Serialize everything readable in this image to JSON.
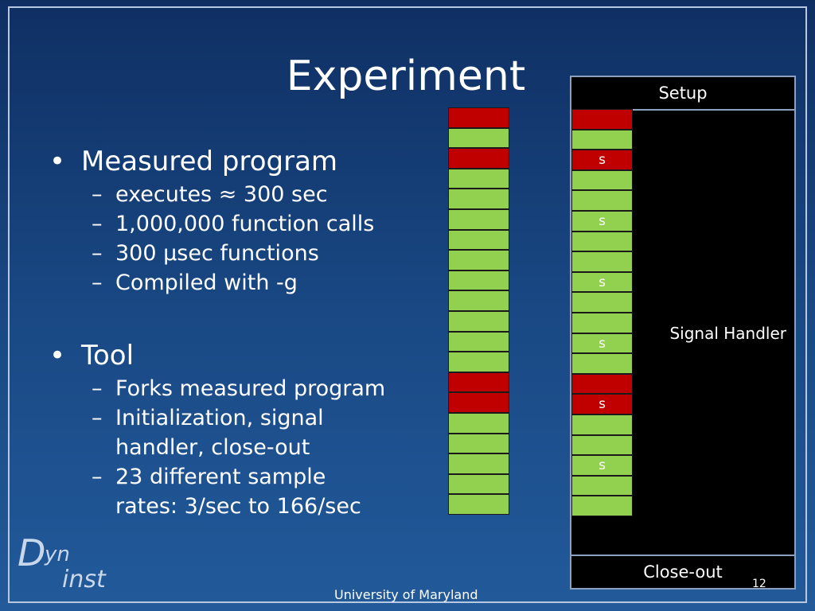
{
  "slide": {
    "title": "Experiment",
    "bullets": [
      {
        "text": "Measured program",
        "subs": [
          "executes  ≈ 300 sec",
          "1,000,000 function calls",
          "300 µsec functions",
          "Compiled with -g"
        ]
      },
      {
        "text": "Tool",
        "subs": [
          "Forks measured program",
          "Initialization, signal\nhandler, close-out",
          "23 different  sample\nrates:  3/sec to 166/sec"
        ]
      }
    ]
  },
  "program_column": [
    "red",
    "green",
    "red",
    "green",
    "green",
    "green",
    "green",
    "green",
    "green",
    "green",
    "green",
    "green",
    "green",
    "red",
    "red",
    "green",
    "green",
    "green",
    "green",
    "green"
  ],
  "execution_column": [
    {
      "color": "red",
      "label": ""
    },
    {
      "color": "green",
      "label": ""
    },
    {
      "color": "red",
      "label": "s"
    },
    {
      "color": "green",
      "label": ""
    },
    {
      "color": "green",
      "label": ""
    },
    {
      "color": "green",
      "label": "s"
    },
    {
      "color": "green",
      "label": ""
    },
    {
      "color": "green",
      "label": ""
    },
    {
      "color": "green",
      "label": "s"
    },
    {
      "color": "green",
      "label": ""
    },
    {
      "color": "green",
      "label": ""
    },
    {
      "color": "green",
      "label": "s"
    },
    {
      "color": "green",
      "label": ""
    },
    {
      "color": "red",
      "label": ""
    },
    {
      "color": "red",
      "label": "s"
    },
    {
      "color": "green",
      "label": ""
    },
    {
      "color": "green",
      "label": ""
    },
    {
      "color": "green",
      "label": "s"
    },
    {
      "color": "green",
      "label": ""
    },
    {
      "color": "green",
      "label": ""
    }
  ],
  "diagram": {
    "setup_label": "Setup",
    "handler_label": "Signal Handler",
    "closeout_label": "Close-out"
  },
  "colors": {
    "green": "#92d050",
    "red": "#c00000"
  },
  "footer": {
    "institution": "University of Maryland",
    "page_number": "12"
  },
  "logo": {
    "d": "D",
    "yn": "yn",
    "inst": "inst"
  }
}
